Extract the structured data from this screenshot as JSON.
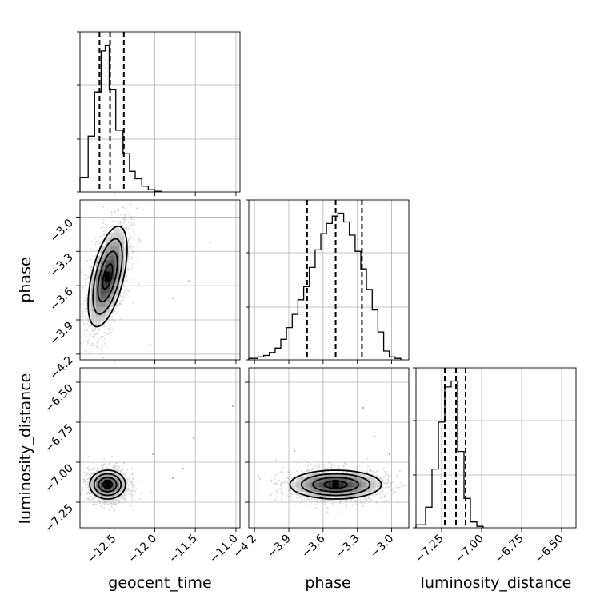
{
  "chart_data": {
    "type": "corner",
    "parameters": [
      "geocent_time",
      "phase",
      "luminosity_distance"
    ],
    "axis_labels": {
      "geocent_time": "geocent_time",
      "phase": "phase",
      "luminosity_distance": "luminosity_distance"
    },
    "ranges": {
      "geocent_time": [
        -12.92,
        -10.95
      ],
      "phase": [
        -4.25,
        -2.85
      ],
      "luminosity_distance": [
        -7.41,
        -6.41
      ]
    },
    "ticks": {
      "geocent_time": [
        -12.5,
        -12.0,
        -11.5,
        -11.0
      ],
      "phase": [
        -4.2,
        -3.9,
        -3.6,
        -3.3,
        -3.0
      ],
      "luminosity_distance": [
        -7.25,
        -7.0,
        -6.75,
        -6.5
      ]
    },
    "tick_labels": {
      "geocent_time": [
        "−12.5",
        "−12.0",
        "−11.5",
        "−11.0"
      ],
      "phase": [
        "−4.2",
        "−3.9",
        "−3.6",
        "−3.3",
        "−3.0"
      ],
      "luminosity_distance": [
        "−7.25",
        "−7.00",
        "−6.75",
        "−6.50"
      ]
    },
    "quantiles": {
      "geocent_time": [
        -12.68,
        -12.55,
        -12.38
      ],
      "phase": [
        -3.74,
        -3.49,
        -3.26
      ],
      "luminosity_distance": [
        -7.23,
        -7.16,
        -7.1
      ]
    },
    "histograms": {
      "geocent_time": {
        "edges": [
          -12.92,
          -12.82,
          -12.74,
          -12.66,
          -12.61,
          -12.56,
          -12.48,
          -12.39,
          -12.31,
          -12.24,
          -12.16,
          -12.08,
          -12.0,
          -11.92
        ],
        "counts": [
          0.1,
          0.38,
          0.68,
          0.96,
          1.0,
          0.7,
          0.42,
          0.26,
          0.14,
          0.09,
          0.04,
          0.015,
          0.005
        ]
      },
      "phase": {
        "edges": [
          -4.25,
          -4.17,
          -4.12,
          -4.07,
          -4.02,
          -3.97,
          -3.92,
          -3.87,
          -3.82,
          -3.77,
          -3.72,
          -3.67,
          -3.62,
          -3.57,
          -3.52,
          -3.47,
          -3.42,
          -3.37,
          -3.32,
          -3.27,
          -3.22,
          -3.17,
          -3.12,
          -3.07,
          -3.02,
          -2.97,
          -2.92
        ],
        "counts": [
          0.01,
          0.02,
          0.03,
          0.05,
          0.08,
          0.14,
          0.22,
          0.31,
          0.41,
          0.5,
          0.63,
          0.75,
          0.86,
          0.93,
          0.98,
          1.0,
          0.94,
          0.85,
          0.74,
          0.62,
          0.48,
          0.34,
          0.19,
          0.06,
          0.02,
          0.01
        ]
      },
      "luminosity_distance": {
        "edges": [
          -7.41,
          -7.35,
          -7.31,
          -7.27,
          -7.23,
          -7.19,
          -7.15,
          -7.11,
          -7.07,
          -7.03,
          -6.99
        ],
        "counts": [
          0.02,
          0.14,
          0.4,
          0.72,
          0.96,
          1.0,
          0.52,
          0.2,
          0.04,
          0.01
        ]
      }
    },
    "pairs": [
      {
        "x": "geocent_time",
        "y": "phase",
        "center": [
          -12.58,
          -3.52
        ],
        "spread": [
          0.12,
          0.22
        ],
        "correlation": 0.55,
        "outliers": [
          [
            -11.32,
            -3.22
          ],
          [
            -11.58,
            -3.56
          ],
          [
            -11.78,
            -3.71
          ],
          [
            -12.05,
            -4.12
          ]
        ]
      },
      {
        "x": "geocent_time",
        "y": "luminosity_distance",
        "center": [
          -12.58,
          -7.14
        ],
        "spread": [
          0.11,
          0.045
        ],
        "correlation": 0.0,
        "outliers": [
          [
            -11.04,
            -6.65
          ],
          [
            -11.52,
            -6.85
          ],
          [
            -11.78,
            -7.1
          ],
          [
            -12.02,
            -6.95
          ],
          [
            -11.65,
            -7.04
          ]
        ]
      },
      {
        "x": "phase",
        "y": "luminosity_distance",
        "center": [
          -3.49,
          -7.14
        ],
        "spread": [
          0.2,
          0.045
        ],
        "correlation": 0.0,
        "outliers": [
          [
            -3.25,
            -6.66
          ],
          [
            -3.02,
            -6.95
          ],
          [
            -3.85,
            -6.93
          ],
          [
            -3.15,
            -6.84
          ]
        ]
      }
    ],
    "grid": true
  }
}
